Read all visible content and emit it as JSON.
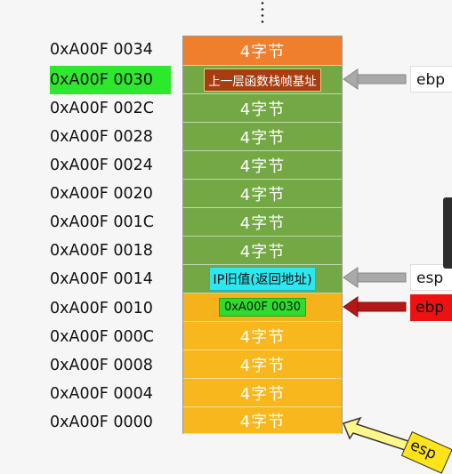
{
  "rows": [
    {
      "address": "0xA00F 0034",
      "content": "4字节"
    },
    {
      "address": "0xA00F 0030",
      "content": "上一层函数栈帧基址"
    },
    {
      "address": "0xA00F 002C",
      "content": "4字节"
    },
    {
      "address": "0xA00F 0028",
      "content": "4字节"
    },
    {
      "address": "0xA00F 0024",
      "content": "4字节"
    },
    {
      "address": "0xA00F 0020",
      "content": "4字节"
    },
    {
      "address": "0xA00F 001C",
      "content": "4字节"
    },
    {
      "address": "0xA00F 0018",
      "content": "4字节"
    },
    {
      "address": "0xA00F 0014",
      "content": "IP旧值(返回地址)"
    },
    {
      "address": "0xA00F 0010",
      "content": "0xA00F 0030"
    },
    {
      "address": "0xA00F 000C",
      "content": "4字节"
    },
    {
      "address": "0xA00F 0008",
      "content": "4字节"
    },
    {
      "address": "0xA00F 0004",
      "content": "4字节"
    },
    {
      "address": "0xA00F 0000",
      "content": "4字节"
    }
  ],
  "pointers": {
    "ebp_top": "ebp",
    "esp_mid": "esp",
    "ebp_red": "ebp",
    "esp_bottom": "esp"
  },
  "colors": {
    "orange": "#ef7f2d",
    "green": "#74a845",
    "yellow": "#f8b71c",
    "highlight": "#2ee82e",
    "red": "#ee1111"
  }
}
